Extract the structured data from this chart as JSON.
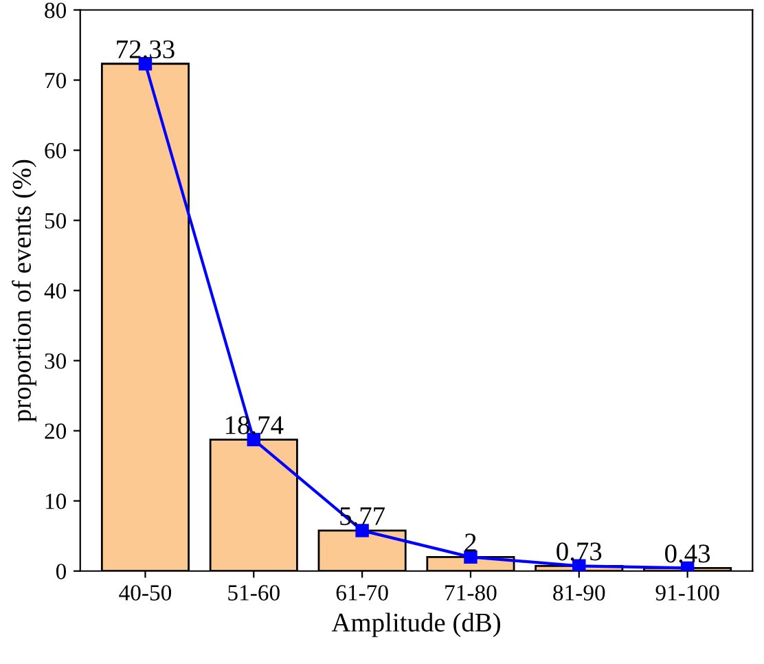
{
  "chart_data": {
    "type": "bar",
    "xlabel": "Amplitude (dB)",
    "ylabel": "proportion of events (%)",
    "categories": [
      "40-50",
      "51-60",
      "61-70",
      "71-80",
      "81-90",
      "91-100"
    ],
    "series": [
      {
        "color": "#fdc992",
        "values": [
          72.33,
          18.74,
          5.77,
          2,
          0.73,
          0.43
        ],
        "data_labels": true
      },
      {
        "type": "line",
        "color": "#0000ff",
        "values": [
          72.33,
          18.74,
          5.77,
          2,
          0.73,
          0.43
        ],
        "marker": "square",
        "line_style": "solid"
      }
    ],
    "ylim": [
      0,
      80
    ],
    "yticks": [
      0,
      10,
      20,
      30,
      40,
      50,
      60,
      70,
      80
    ],
    "grid": false,
    "legend": false
  }
}
